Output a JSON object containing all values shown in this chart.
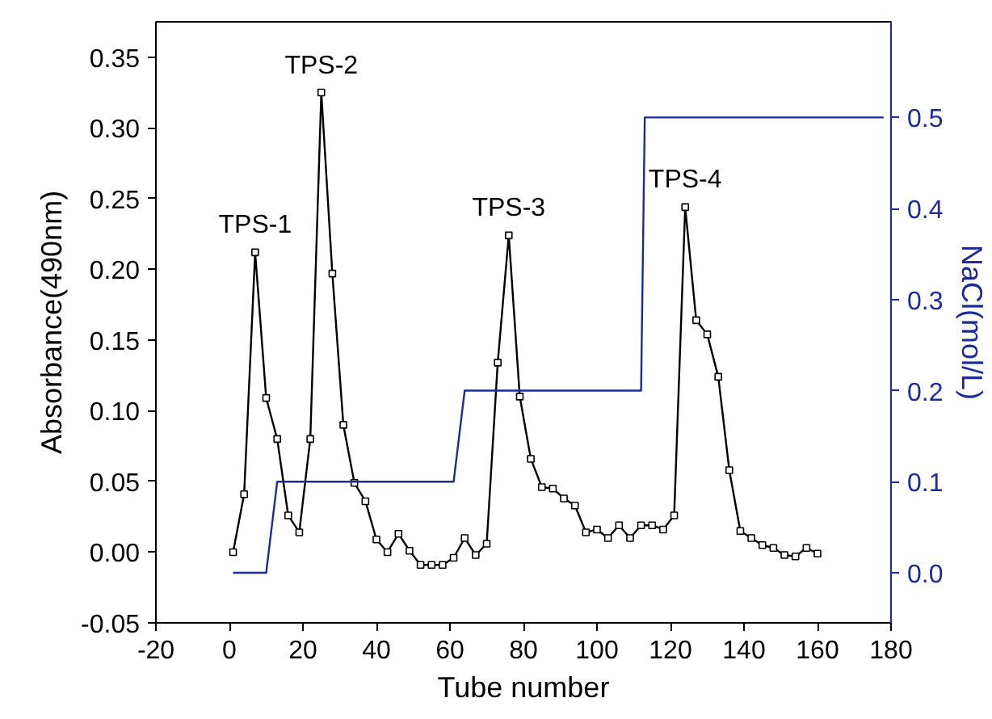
{
  "chart_data": {
    "type": "line",
    "xlabel": "Tube number",
    "ylabel": "Absorbance(490nm)",
    "y2label": "NaCl(mol/L)",
    "x": [
      1,
      4,
      7,
      10,
      13,
      16,
      19,
      22,
      25,
      28,
      31,
      34,
      37,
      40,
      43,
      46,
      49,
      52,
      55,
      58,
      61,
      64,
      67,
      70,
      73,
      76,
      79,
      82,
      85,
      88,
      91,
      94,
      97,
      100,
      103,
      106,
      109,
      112,
      115,
      118,
      121,
      124,
      127,
      130,
      133,
      136,
      139,
      142,
      145,
      148,
      151,
      154,
      157,
      160
    ],
    "series": [
      {
        "color": "#000000",
        "marker": "square",
        "values": [
          0.0,
          0.041,
          0.212,
          0.109,
          0.08,
          0.026,
          0.014,
          0.08,
          0.325,
          0.197,
          0.09,
          0.049,
          0.036,
          0.009,
          0.0,
          0.013,
          0.001,
          -0.009,
          -0.009,
          -0.009,
          -0.004,
          0.01,
          -0.002,
          0.006,
          0.134,
          0.224,
          0.11,
          0.066,
          0.046,
          0.045,
          0.038,
          0.033,
          0.014,
          0.016,
          0.01,
          0.019,
          0.01,
          0.019,
          0.019,
          0.016,
          0.026,
          0.244,
          0.164,
          0.154,
          0.124,
          0.058,
          0.015,
          0.01,
          0.005,
          0.003,
          -0.002,
          -0.003,
          0.003,
          -0.001
        ]
      },
      {
        "color": "#1c2a9c",
        "axis": "y2",
        "marker": "none",
        "x": [
          1,
          10,
          13,
          61,
          64,
          112,
          113,
          178
        ],
        "values": [
          0.0,
          0.0,
          0.1,
          0.1,
          0.2,
          0.2,
          0.5,
          0.5
        ]
      }
    ],
    "xlim": [
      -20,
      180
    ],
    "xticks": [
      -20,
      0,
      20,
      40,
      60,
      80,
      100,
      120,
      140,
      160,
      180
    ],
    "ylim": [
      -0.05,
      0.375
    ],
    "yticks": [
      {
        "value": -0.05,
        "label": "-0.05"
      },
      {
        "value": 0,
        "label": "0.00"
      },
      {
        "value": 0.05,
        "label": "0.05"
      },
      {
        "value": 0.1,
        "label": "0.10"
      },
      {
        "value": 0.15,
        "label": "0.15"
      },
      {
        "value": 0.2,
        "label": "0.20"
      },
      {
        "value": 0.25,
        "label": "0.25"
      },
      {
        "value": 0.3,
        "label": "0.30"
      },
      {
        "value": 0.35,
        "label": "0.35"
      }
    ],
    "y2lim": [
      -0.055,
      0.605
    ],
    "y2ticks": [
      {
        "value": 0,
        "label": "0.0"
      },
      {
        "value": 0.1,
        "label": "0.1"
      },
      {
        "value": 0.2,
        "label": "0.2"
      },
      {
        "value": 0.3,
        "label": "0.3"
      },
      {
        "value": 0.4,
        "label": "0.4"
      },
      {
        "value": 0.5,
        "label": "0.5"
      }
    ],
    "annotations": [
      {
        "text": "TPS-1",
        "x": 7,
        "y": 0.212
      },
      {
        "text": "TPS-2",
        "x": 25,
        "y": 0.325
      },
      {
        "text": "TPS-3",
        "x": 76,
        "y": 0.224
      },
      {
        "text": "TPS-4",
        "x": 124,
        "y": 0.244
      }
    ],
    "line_style": "solid"
  }
}
